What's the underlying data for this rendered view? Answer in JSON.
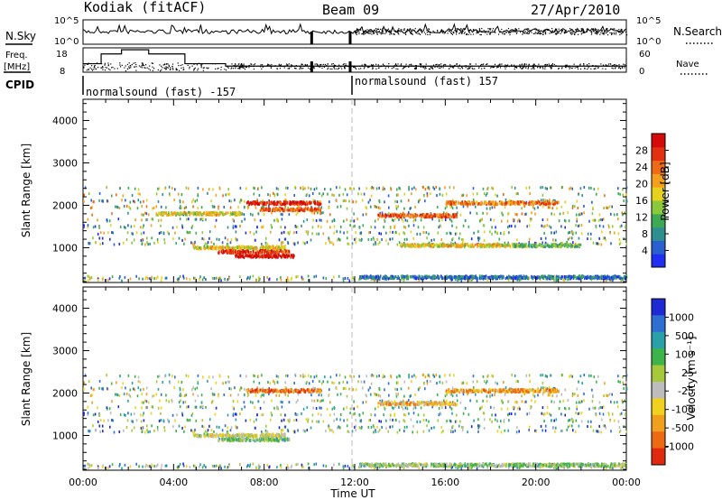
{
  "header": {
    "station": "Kodiak (fitACF)",
    "beam": "Beam 09",
    "date": "27/Apr/2010"
  },
  "top_panels": {
    "nsky_label": "N.Sky",
    "nsky_ticks": [
      "10^5",
      "10^0"
    ],
    "nsearch_label": "N.Search",
    "nsearch_ticks": [
      "10^5",
      "10^0"
    ],
    "freq_label_1": "Freq.",
    "freq_label_2": "[MHz]",
    "freq_ticks": [
      "18",
      "8"
    ],
    "nave_label": "Nave",
    "nave_ticks": [
      "60",
      "0"
    ],
    "cpid_label": "CPID",
    "cpid_segments": [
      {
        "name": "normalsound (fast) -157",
        "start_hour": 0,
        "end_hour": 12
      },
      {
        "name": "normalsound (fast) 157",
        "start_hour": 12,
        "end_hour": 24
      }
    ],
    "freq_steps": [
      {
        "hour": 0,
        "mhz": 11.5
      },
      {
        "hour": 0.8,
        "mhz": 15.5
      },
      {
        "hour": 1.7,
        "mhz": 17.2
      },
      {
        "hour": 2.9,
        "mhz": 15.5
      },
      {
        "hour": 4.5,
        "mhz": 11.5
      },
      {
        "hour": 6.3,
        "mhz": 10.5
      },
      {
        "hour": 24,
        "mhz": 10.5
      }
    ],
    "freq_markers_hours": [
      10.1,
      11.8
    ]
  },
  "chart_data": [
    {
      "type": "heatmap",
      "parameter": "Power",
      "ylabel": "Slant Range [km]",
      "xlabel": "Time UT",
      "ylim": [
        180,
        4500
      ],
      "yticks": [
        "1000",
        "2000",
        "3000",
        "4000"
      ],
      "xticks": [
        "00:00",
        "04:00",
        "08:00",
        "12:00",
        "16:00",
        "20:00",
        "00:00"
      ],
      "colorbar_label": "Power [dB]",
      "colorbar_ticks": [
        "4",
        "8",
        "12",
        "16",
        "20",
        "24",
        "28"
      ],
      "colorbar_range": [
        0,
        30
      ],
      "colormap": [
        "#1f2ef0",
        "#2a5fd0",
        "#2f8f8f",
        "#3caa55",
        "#8ac83c",
        "#e6d21e",
        "#f3a01e",
        "#ee6a14",
        "#e23010",
        "#d40a0a"
      ],
      "bands": [
        {
          "start_hour": 4.8,
          "end_hour": 8.9,
          "range_km": 1000,
          "level": 0.55
        },
        {
          "start_hour": 5.9,
          "end_hour": 9.1,
          "range_km": 900,
          "level": 0.85
        },
        {
          "start_hour": 6.7,
          "end_hour": 9.3,
          "range_km": 800,
          "level": 0.95
        },
        {
          "start_hour": 7.2,
          "end_hour": 10.5,
          "range_km": 2050,
          "level": 0.9
        },
        {
          "start_hour": 7.8,
          "end_hour": 10.5,
          "range_km": 1900,
          "level": 0.75
        },
        {
          "start_hour": 3.2,
          "end_hour": 7.0,
          "range_km": 1800,
          "level": 0.55
        },
        {
          "start_hour": 13.0,
          "end_hour": 16.5,
          "range_km": 1750,
          "level": 0.8
        },
        {
          "start_hour": 16.0,
          "end_hour": 21.0,
          "range_km": 2050,
          "level": 0.72
        },
        {
          "start_hour": 12.2,
          "end_hour": 24.0,
          "range_km": 300,
          "level": 0.2
        },
        {
          "start_hour": 14.0,
          "end_hour": 19.5,
          "range_km": 1050,
          "level": 0.55
        },
        {
          "start_hour": 19.0,
          "end_hour": 22.0,
          "range_km": 1050,
          "level": 0.4
        }
      ]
    },
    {
      "type": "heatmap",
      "parameter": "Velocity",
      "ylabel": "Slant Range [km]",
      "xlabel": "Time UT",
      "ylim": [
        180,
        4500
      ],
      "yticks": [
        "1000",
        "2000",
        "3000",
        "4000"
      ],
      "xticks": [
        "00:00",
        "04:00",
        "08:00",
        "12:00",
        "16:00",
        "20:00",
        "00:00"
      ],
      "colorbar_label": "Velocity [m s⁻¹]",
      "colorbar_ticks": [
        "1000",
        "500",
        "100",
        "25",
        "-25",
        "-100",
        "-500",
        "-1000"
      ],
      "colorbar_range": [
        -1000,
        1000
      ],
      "colormap": [
        "#1e2ad4",
        "#2e6fd2",
        "#2aa0a8",
        "#3cb44a",
        "#a8c83c",
        "#bdbdbd",
        "#f0d21e",
        "#f0a01e",
        "#ec6a14",
        "#e02a10"
      ],
      "bands": [
        {
          "start_hour": 4.8,
          "end_hour": 8.9,
          "range_km": 1000,
          "level": 0.55
        },
        {
          "start_hour": 5.9,
          "end_hour": 9.1,
          "range_km": 900,
          "level": 0.4
        },
        {
          "start_hour": 7.2,
          "end_hour": 10.5,
          "range_km": 2050,
          "level": 0.85
        },
        {
          "start_hour": 13.0,
          "end_hour": 16.5,
          "range_km": 1750,
          "level": 0.7
        },
        {
          "start_hour": 16.0,
          "end_hour": 21.0,
          "range_km": 2050,
          "level": 0.75
        },
        {
          "start_hour": 12.2,
          "end_hour": 24.0,
          "range_km": 300,
          "level": 0.45
        }
      ]
    }
  ]
}
